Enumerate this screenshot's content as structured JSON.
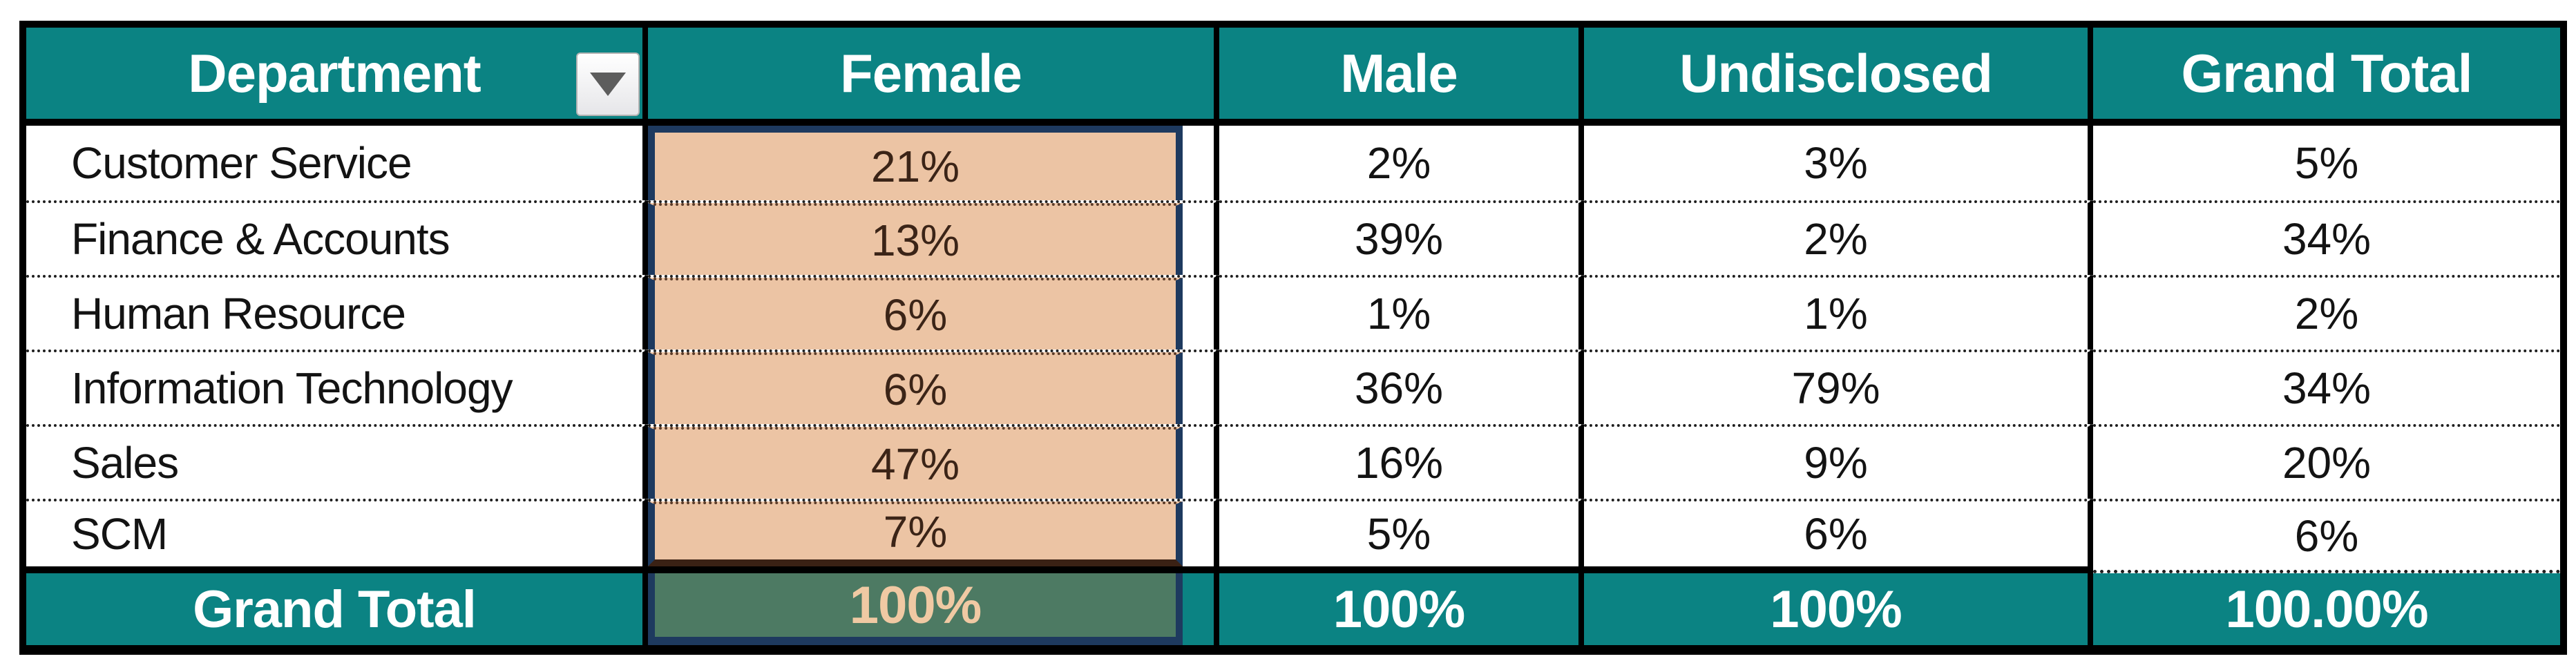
{
  "table": {
    "columns": [
      "Department",
      "Female",
      "Male",
      "Undisclosed",
      "Grand Total"
    ],
    "rows": [
      {
        "department": "Customer Service",
        "female": "21%",
        "male": "2%",
        "undisclosed": "3%",
        "grand_total": "5%"
      },
      {
        "department": "Finance & Accounts",
        "female": "13%",
        "male": "39%",
        "undisclosed": "2%",
        "grand_total": "34%"
      },
      {
        "department": "Human Resource",
        "female": "6%",
        "male": "1%",
        "undisclosed": "1%",
        "grand_total": "2%"
      },
      {
        "department": "Information Technology",
        "female": "6%",
        "male": "36%",
        "undisclosed": "79%",
        "grand_total": "34%"
      },
      {
        "department": "Sales",
        "female": "47%",
        "male": "16%",
        "undisclosed": "9%",
        "grand_total": "20%"
      },
      {
        "department": "SCM",
        "female": "7%",
        "male": "5%",
        "undisclosed": "6%",
        "grand_total": "6%"
      }
    ],
    "totals": {
      "label": "Grand Total",
      "female": "100%",
      "male": "100%",
      "undisclosed": "100%",
      "grand_total": "100.00%"
    },
    "selected_column": "Female"
  },
  "colors": {
    "header_teal": "#0b8383",
    "selection_fill_peach": "#ecc4a4",
    "selection_border_navy": "#1e3a5f",
    "selected_total_green": "#4d7a63",
    "selected_total_text_peach": "#f0c9a3",
    "grid_black": "#000000"
  }
}
